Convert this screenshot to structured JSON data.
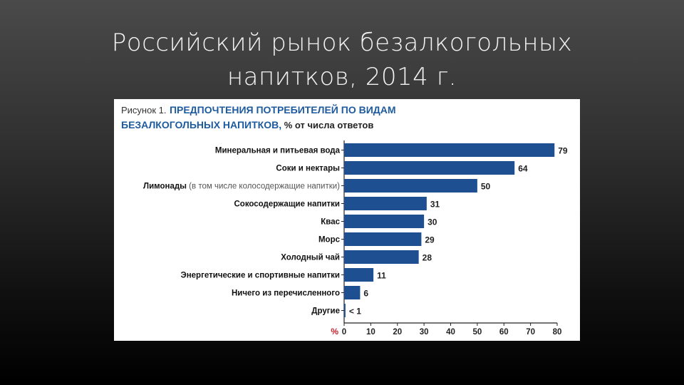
{
  "slide": {
    "title_line1": "Российский рынок безалкогольных",
    "title_line2": "напитков, 2014 г."
  },
  "figure": {
    "prefix": "Рисунок 1.",
    "title_part1": "ПРЕДПОЧТЕНИЯ ПОТРЕБИТЕЛЕЙ ПО ВИДАМ",
    "title_part2": "БЕЗАЛКОГОЛЬНЫХ НАПИТКОВ,",
    "title_suffix": " % от числа ответов"
  },
  "chart_data": {
    "type": "bar",
    "orientation": "horizontal",
    "categories": [
      {
        "main": "Минеральная и питьевая вода",
        "note": ""
      },
      {
        "main": "Соки и нектары",
        "note": ""
      },
      {
        "main": "Лимонады",
        "note": " (в том числе колосодержащие напитки)"
      },
      {
        "main": "Сокосодержащие напитки",
        "note": ""
      },
      {
        "main": "Квас",
        "note": ""
      },
      {
        "main": "Морс",
        "note": ""
      },
      {
        "main": "Холодный чай",
        "note": ""
      },
      {
        "main": "Энергетические и спортивные напитки",
        "note": ""
      },
      {
        "main": "Ничего из перечисленного",
        "note": ""
      },
      {
        "main": "Другие",
        "note": ""
      }
    ],
    "values": [
      79,
      64,
      50,
      31,
      30,
      29,
      28,
      11,
      6,
      0.5
    ],
    "value_labels": [
      "79",
      "64",
      "50",
      "31",
      "30",
      "29",
      "28",
      "11",
      "6",
      "< 1"
    ],
    "xlabel": "%",
    "xlim": [
      0,
      80
    ],
    "xticks": [
      0,
      10,
      20,
      30,
      40,
      50,
      60,
      70,
      80
    ],
    "bar_color": "#1d4f91",
    "grid": false,
    "legend": "none"
  }
}
